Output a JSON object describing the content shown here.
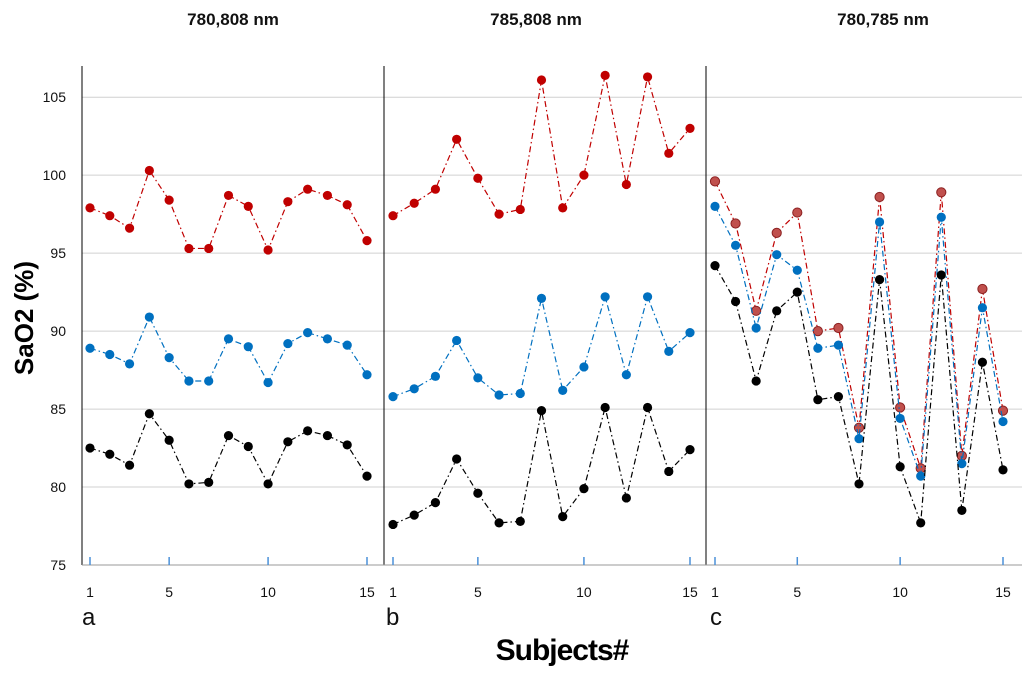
{
  "colors": {
    "red": "#c00000",
    "blue": "#0070c0",
    "black": "#000000",
    "red_point_c": "#c0504d",
    "grid": "#d0d0d0",
    "tick_mark": "#4a90d9"
  },
  "chart_data": {
    "type": "scatter",
    "ylabel": "SaO2 (%)",
    "xlabel": "Subjects#",
    "ylim": [
      75,
      107
    ],
    "yticks": [
      75,
      80,
      85,
      90,
      95,
      100,
      105
    ],
    "xticks": [
      1,
      5,
      10,
      15
    ],
    "x": [
      1,
      2,
      3,
      4,
      5,
      6,
      7,
      8,
      9,
      10,
      11,
      12,
      13,
      14,
      15
    ],
    "grid": "horizontal",
    "panels": [
      {
        "letter": "a",
        "title": "780,808 nm",
        "series": [
          {
            "color": "red",
            "values": [
              97.9,
              97.4,
              96.6,
              100.3,
              98.4,
              95.3,
              95.3,
              98.7,
              98.0,
              95.2,
              98.3,
              99.1,
              98.7,
              98.1,
              95.8
            ]
          },
          {
            "color": "blue",
            "values": [
              88.9,
              88.5,
              87.9,
              90.9,
              88.3,
              86.8,
              86.8,
              89.5,
              89.0,
              86.7,
              89.2,
              89.9,
              89.5,
              89.1,
              87.2
            ]
          },
          {
            "color": "black",
            "values": [
              82.5,
              82.1,
              81.4,
              84.7,
              83.0,
              80.2,
              80.3,
              83.3,
              82.6,
              80.2,
              82.9,
              83.6,
              83.3,
              82.7,
              80.7
            ]
          }
        ]
      },
      {
        "letter": "b",
        "title": "785,808 nm",
        "series": [
          {
            "color": "red",
            "values": [
              97.4,
              98.2,
              99.1,
              102.3,
              99.8,
              97.5,
              97.8,
              106.1,
              97.9,
              100.0,
              106.4,
              99.4,
              106.3,
              101.4,
              103.0
            ]
          },
          {
            "color": "blue",
            "values": [
              85.8,
              86.3,
              87.1,
              89.4,
              87.0,
              85.9,
              86.0,
              92.1,
              86.2,
              87.7,
              92.2,
              87.2,
              92.2,
              88.7,
              89.9
            ]
          },
          {
            "color": "black",
            "values": [
              77.6,
              78.2,
              79.0,
              81.8,
              79.6,
              77.7,
              77.8,
              84.9,
              78.1,
              79.9,
              85.1,
              79.3,
              85.1,
              81.0,
              82.4
            ]
          }
        ]
      },
      {
        "letter": "c",
        "title": "780,785 nm",
        "series": [
          {
            "color": "red_point_c",
            "line": "red",
            "values": [
              99.6,
              96.9,
              91.3,
              96.3,
              97.6,
              90.0,
              90.2,
              83.8,
              98.6,
              85.1,
              81.2,
              98.9,
              82.0,
              92.7,
              84.9
            ]
          },
          {
            "color": "blue",
            "values": [
              98.0,
              95.5,
              90.2,
              94.9,
              93.9,
              88.9,
              89.1,
              83.1,
              97.0,
              84.4,
              80.7,
              97.3,
              81.5,
              91.5,
              84.2
            ]
          },
          {
            "color": "black",
            "values": [
              94.2,
              91.9,
              86.8,
              91.3,
              92.5,
              85.6,
              85.8,
              80.2,
              93.3,
              81.3,
              77.7,
              93.6,
              78.5,
              88.0,
              81.1
            ]
          }
        ]
      }
    ]
  }
}
